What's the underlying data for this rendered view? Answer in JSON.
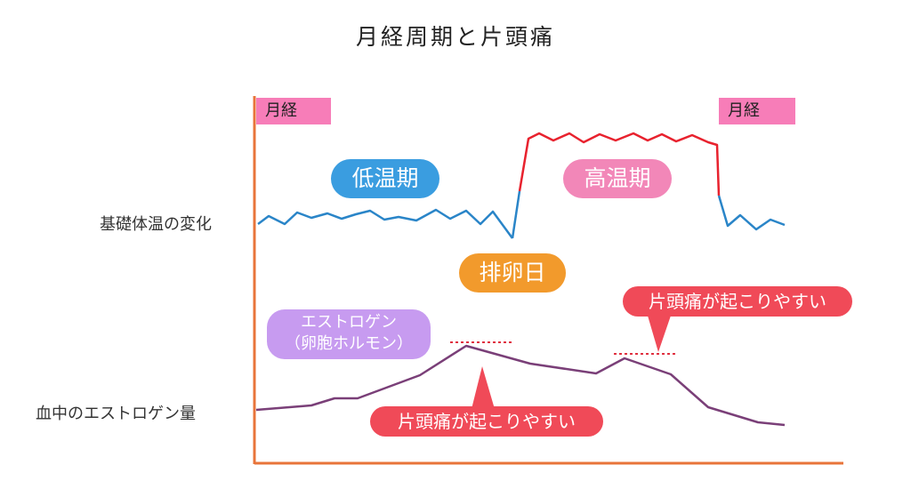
{
  "title": "月経周期と片頭痛",
  "row_labels": {
    "temperature": "基礎体温の変化",
    "estrogen": "血中のエストロゲン量"
  },
  "period_labels": [
    "月経",
    "月経"
  ],
  "phase_labels": {
    "low": "低温期",
    "high": "高温期",
    "ovulation": "排卵日"
  },
  "estrogen_label": {
    "line1": "エストロゲン",
    "line2": "（卵胞ホルモン）"
  },
  "migraine_labels": [
    "片頭痛が起こりやすい",
    "片頭痛が起こりやすい"
  ],
  "colors": {
    "low_temp": "#2a85c8",
    "high_temp": "#e8222e",
    "estrogen_line": "#7a3f78",
    "axis": "#e8743a",
    "period_bar": "#f77db8",
    "low_pill": "#3a9de0",
    "high_pill": "#f287b8",
    "ovulation_pill": "#f29a2c",
    "estrogen_pill": "#c79bf0",
    "migraine_pill": "#f04a58",
    "dotted": "#e03040"
  }
}
